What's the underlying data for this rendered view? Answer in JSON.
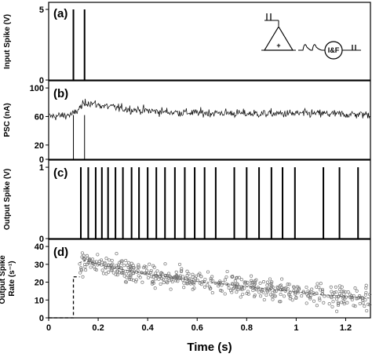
{
  "chart_data": [
    {
      "type": "bar",
      "panel": "(a)",
      "ylabel": "Input Spike (V)",
      "yticks": [
        "0",
        "5"
      ],
      "ylim": [
        0,
        5.5
      ],
      "xlim": [
        0,
        1.3
      ],
      "spike_times": [
        0.1,
        0.145
      ],
      "spike_amplitude": 5,
      "inset": {
        "neuron_label": "I&F",
        "plus_sign": "+"
      }
    },
    {
      "type": "line",
      "panel": "(b)",
      "ylabel": "PSC (nA)",
      "yticks": [
        "0",
        "20",
        "60",
        "100"
      ],
      "ylim": [
        0,
        110
      ],
      "xlim": [
        0,
        1.3
      ],
      "input_markers": [
        0.1,
        0.145
      ],
      "series": [
        {
          "x": [
            0,
            0.05,
            0.1,
            0.12,
            0.145,
            0.16,
            0.2,
            0.3,
            0.4,
            0.5,
            0.6,
            0.7,
            0.8,
            0.9,
            1.0,
            1.1,
            1.2,
            1.3
          ],
          "values": [
            60,
            61,
            63,
            70,
            78,
            80,
            76,
            71,
            68,
            66,
            65,
            65,
            64,
            64,
            64,
            64,
            63,
            63
          ]
        }
      ]
    },
    {
      "type": "bar",
      "panel": "(c)",
      "ylabel": "Output Spike (V)",
      "yticks": [
        "0",
        "1"
      ],
      "ylim": [
        0,
        1.1
      ],
      "xlim": [
        0,
        1.3
      ],
      "spike_times": [
        0.13,
        0.16,
        0.19,
        0.215,
        0.24,
        0.27,
        0.3,
        0.335,
        0.365,
        0.4,
        0.435,
        0.47,
        0.51,
        0.55,
        0.59,
        0.63,
        0.675,
        0.75,
        0.8,
        0.85,
        0.9,
        0.945,
        0.995,
        1.11,
        1.175,
        1.25
      ],
      "spike_amplitude": 1
    },
    {
      "type": "scatter",
      "panel": "(d)",
      "ylabel": "Output Spike Rate (s⁻¹)",
      "yticks": [
        "0",
        "10",
        "20",
        "30",
        "40"
      ],
      "ylim": [
        0,
        44
      ],
      "xlim": [
        0,
        1.3
      ],
      "xlabel": "Time (s)",
      "xticks": [
        "0",
        "0.2",
        "0.4",
        "0.6",
        "0.8",
        "1",
        "1.2"
      ],
      "trend_x": [
        0.125,
        0.15,
        0.2,
        0.3,
        0.4,
        0.5,
        0.6,
        0.7,
        0.8,
        0.9,
        1.0,
        1.1,
        1.2,
        1.3
      ],
      "trend_values": [
        31,
        32,
        30,
        27,
        24.5,
        22.5,
        20.5,
        19,
        17.5,
        16,
        14.5,
        13,
        12,
        11
      ],
      "dashed_step": {
        "x": [
          0,
          0.1,
          0.1,
          0.125
        ],
        "values": [
          0,
          0,
          23,
          23
        ]
      },
      "point_count": 500,
      "spread": 5
    }
  ]
}
